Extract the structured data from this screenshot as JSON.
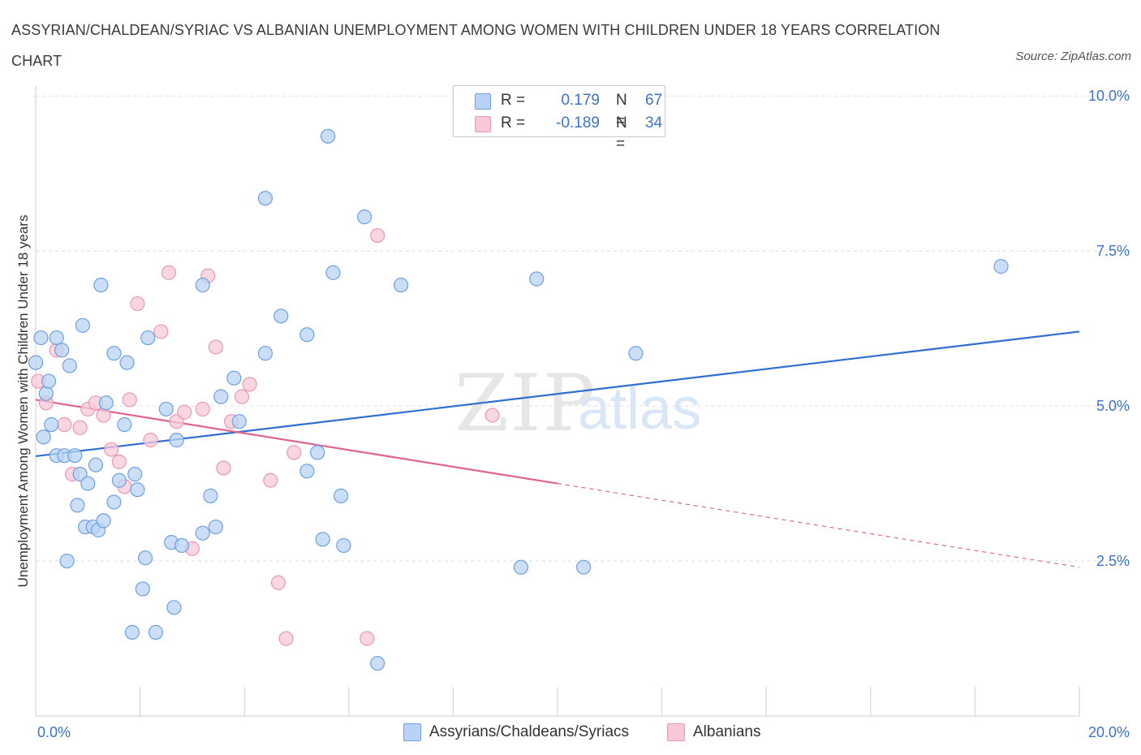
{
  "title": "ASSYRIAN/CHALDEAN/SYRIAC VS ALBANIAN UNEMPLOYMENT AMONG WOMEN WITH CHILDREN UNDER 18 YEARS CORRELATION CHART",
  "source": "Source: ZipAtlas.com",
  "watermark": {
    "zip": "ZIP",
    "atlas": "atlas"
  },
  "legend": {
    "rows": [
      {
        "r_label": "R =",
        "r_value": "0.179",
        "n_label": "N =",
        "n_value": "67"
      },
      {
        "r_label": "R =",
        "r_value": "-0.189",
        "n_label": "N =",
        "n_value": "34"
      }
    ]
  },
  "colors": {
    "blue_fill": "#b8d3f5",
    "blue_stroke": "#6fa0df",
    "blue_line": "#2f6fd1",
    "pink_fill": "#f8c8d8",
    "pink_stroke": "#e899b4",
    "pink_line": "#e0648e",
    "axis_label": "#3a73c9",
    "grid": "#dddddd"
  },
  "chart_data": {
    "type": "scatter",
    "title": "ASSYRIAN/CHALDEAN/SYRIAC VS ALBANIAN UNEMPLOYMENT AMONG WOMEN WITH CHILDREN UNDER 18 YEARS CORRELATION CHART",
    "ylabel": "Unemployment Among Women with Children Under 18 years",
    "xlabel": "",
    "xlim": [
      0,
      20
    ],
    "ylim": [
      0.0,
      10.0
    ],
    "x_tick_labels": [
      {
        "value": 0,
        "label": "0.0%"
      },
      {
        "value": 20,
        "label": "20.0%"
      }
    ],
    "y_tick_labels": [
      {
        "value": 2.5,
        "label": "2.5%"
      },
      {
        "value": 5.0,
        "label": "5.0%"
      },
      {
        "value": 7.5,
        "label": "7.5%"
      },
      {
        "value": 10.0,
        "label": "10.0%"
      }
    ],
    "series": [
      {
        "name": "Assyrians/Chaldeans/Syriacs",
        "r": 0.179,
        "n": 67,
        "trend": {
          "x": [
            0,
            20
          ],
          "y": [
            4.19,
            6.2
          ]
        },
        "points": [
          [
            0.0,
            5.7
          ],
          [
            0.1,
            6.1
          ],
          [
            0.2,
            5.2
          ],
          [
            0.25,
            5.4
          ],
          [
            0.4,
            6.1
          ],
          [
            0.5,
            5.9
          ],
          [
            0.65,
            5.65
          ],
          [
            0.3,
            4.7
          ],
          [
            0.15,
            4.5
          ],
          [
            0.4,
            4.2
          ],
          [
            0.55,
            4.2
          ],
          [
            0.75,
            4.2
          ],
          [
            0.85,
            3.9
          ],
          [
            0.9,
            6.3
          ],
          [
            1.0,
            3.75
          ],
          [
            1.15,
            4.05
          ],
          [
            0.8,
            3.4
          ],
          [
            0.95,
            3.05
          ],
          [
            1.1,
            3.05
          ],
          [
            1.2,
            3.0
          ],
          [
            1.3,
            3.15
          ],
          [
            1.25,
            6.95
          ],
          [
            1.35,
            5.05
          ],
          [
            1.5,
            5.85
          ],
          [
            1.5,
            3.45
          ],
          [
            1.6,
            3.8
          ],
          [
            1.7,
            4.7
          ],
          [
            1.75,
            5.7
          ],
          [
            1.9,
            3.9
          ],
          [
            1.95,
            3.65
          ],
          [
            2.15,
            6.1
          ],
          [
            2.1,
            2.55
          ],
          [
            2.05,
            2.05
          ],
          [
            1.85,
            1.35
          ],
          [
            2.3,
            1.35
          ],
          [
            2.5,
            4.95
          ],
          [
            2.6,
            2.8
          ],
          [
            2.65,
            1.75
          ],
          [
            2.7,
            4.45
          ],
          [
            2.8,
            2.75
          ],
          [
            3.2,
            6.95
          ],
          [
            3.2,
            2.95
          ],
          [
            3.35,
            3.55
          ],
          [
            3.45,
            3.05
          ],
          [
            3.55,
            5.15
          ],
          [
            3.8,
            5.45
          ],
          [
            3.9,
            4.75
          ],
          [
            4.4,
            5.85
          ],
          [
            4.4,
            8.35
          ],
          [
            4.7,
            6.45
          ],
          [
            5.2,
            6.15
          ],
          [
            5.2,
            3.95
          ],
          [
            5.4,
            4.25
          ],
          [
            5.5,
            2.85
          ],
          [
            5.6,
            9.35
          ],
          [
            5.7,
            7.15
          ],
          [
            5.85,
            3.55
          ],
          [
            5.9,
            2.75
          ],
          [
            6.3,
            8.05
          ],
          [
            6.55,
            0.85
          ],
          [
            7.0,
            6.95
          ],
          [
            9.3,
            2.4
          ],
          [
            9.6,
            7.05
          ],
          [
            10.5,
            2.4
          ],
          [
            11.5,
            5.85
          ],
          [
            18.5,
            7.25
          ],
          [
            0.6,
            2.5
          ]
        ]
      },
      {
        "name": "Albanians",
        "r": -0.189,
        "n": 34,
        "trend": {
          "x": [
            0,
            10
          ],
          "y": [
            5.1,
            3.75
          ]
        },
        "trend_dashed": {
          "x": [
            10,
            20
          ],
          "y": [
            3.75,
            2.4
          ]
        },
        "points": [
          [
            0.05,
            5.4
          ],
          [
            0.2,
            5.05
          ],
          [
            0.4,
            5.9
          ],
          [
            0.55,
            4.7
          ],
          [
            0.7,
            3.9
          ],
          [
            0.85,
            4.65
          ],
          [
            1.0,
            4.95
          ],
          [
            1.15,
            5.05
          ],
          [
            1.3,
            4.85
          ],
          [
            1.45,
            4.3
          ],
          [
            1.6,
            4.1
          ],
          [
            1.7,
            3.7
          ],
          [
            1.8,
            5.1
          ],
          [
            1.95,
            6.65
          ],
          [
            2.2,
            4.45
          ],
          [
            2.4,
            6.2
          ],
          [
            2.55,
            7.15
          ],
          [
            2.7,
            4.75
          ],
          [
            2.85,
            4.9
          ],
          [
            3.0,
            2.7
          ],
          [
            3.2,
            4.95
          ],
          [
            3.3,
            7.1
          ],
          [
            3.45,
            5.95
          ],
          [
            3.6,
            4.0
          ],
          [
            3.75,
            4.75
          ],
          [
            3.95,
            5.15
          ],
          [
            4.1,
            5.35
          ],
          [
            4.5,
            3.8
          ],
          [
            4.65,
            2.15
          ],
          [
            4.8,
            1.25
          ],
          [
            4.95,
            4.25
          ],
          [
            6.35,
            1.25
          ],
          [
            6.55,
            7.75
          ],
          [
            8.75,
            4.85
          ]
        ]
      }
    ]
  }
}
